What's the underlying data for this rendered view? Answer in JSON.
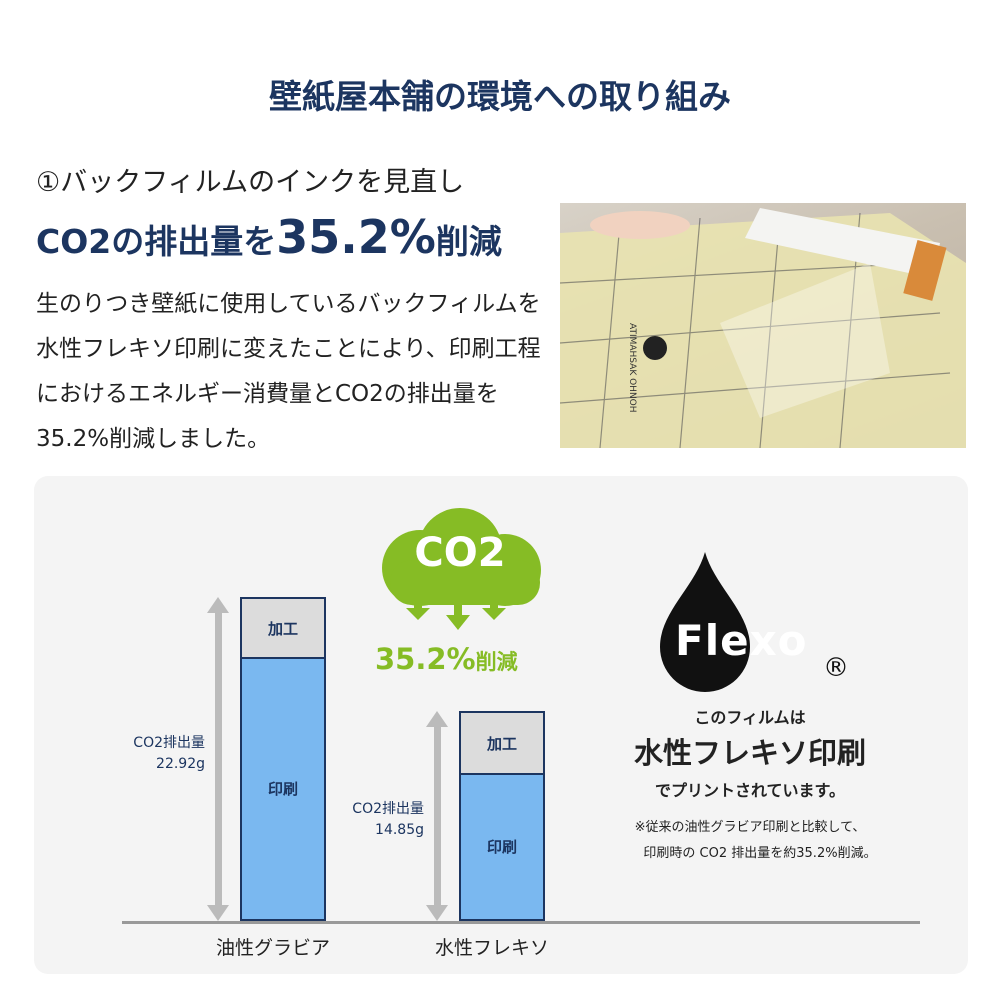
{
  "title": "壁紙屋本舗の環境への取り組み",
  "section": {
    "subtitle": "①バックフィルムのインクを見直し",
    "headline_pre": "CO2の排出量を",
    "headline_value": "35.2%",
    "headline_post": "削減",
    "body": "生のりつき壁紙に使用しているバックフィルムを水性フレキソ印刷に変えたことにより、印刷工程におけるエネルギー消費量とCO2の排出量を35.2%削減しました。"
  },
  "photo": {
    "print_text": "ATIMAHSAK OHNOH"
  },
  "badge": {
    "co2": "CO2",
    "reduction_value": "35.2%",
    "reduction_label": "削減",
    "color": "#86bc25"
  },
  "flexo": {
    "logo": "Flexo",
    "registered": "®",
    "line1": "このフィルムは",
    "line2": "水性フレキソ印刷",
    "line3": "でプリントされています。",
    "note1": "※従来の油性グラビア印刷と比較して、",
    "note2": "印刷時の CO2 排出量を約35.2%削減。"
  },
  "chart_data": {
    "type": "bar",
    "stacked": true,
    "categories": [
      "油性グラビア",
      "水性フレキソ"
    ],
    "totals": [
      22.92,
      14.85
    ],
    "total_labels": [
      {
        "title": "CO2排出量",
        "value": "22.92g"
      },
      {
        "title": "CO2排出量",
        "value": "14.85g"
      }
    ],
    "series": [
      {
        "name": "印刷",
        "values": [
          18.7,
          10.5
        ],
        "color": "#7ab8f0"
      },
      {
        "name": "加工",
        "values": [
          4.22,
          4.35
        ],
        "color": "#dcdcdc"
      }
    ],
    "unit": "g",
    "ylim": [
      0,
      22.92
    ],
    "grid": false,
    "legend": "none"
  }
}
